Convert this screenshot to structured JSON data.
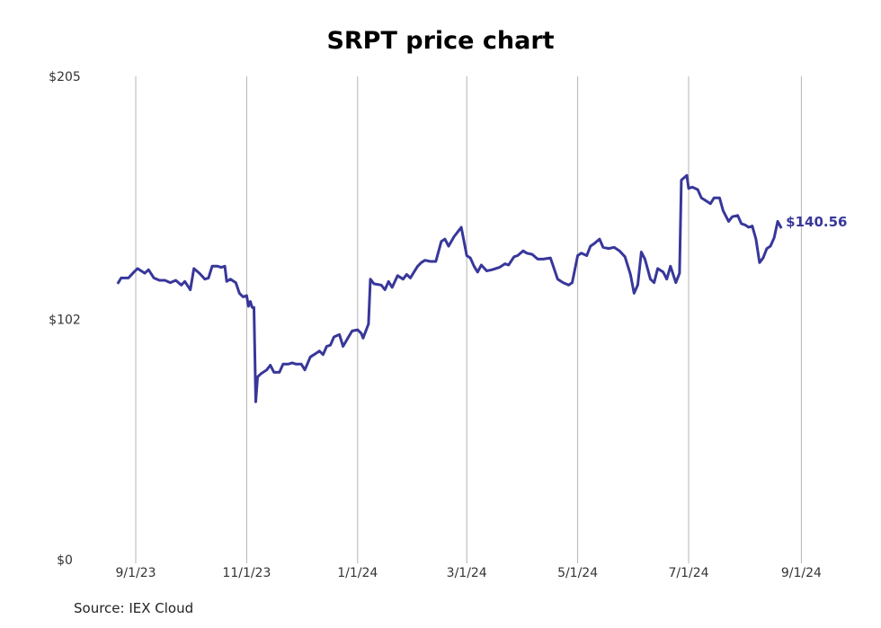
{
  "chart_data": {
    "type": "line",
    "title": "SRPT price chart",
    "source": "Source: IEX Cloud",
    "line_color": "#38379a",
    "grid_color": "#b4b4b4",
    "grid": "vertical",
    "xlabel": "",
    "ylabel": "",
    "x_ticks": [
      "9/1/23",
      "11/1/23",
      "1/1/24",
      "3/1/24",
      "5/1/24",
      "7/1/24",
      "9/1/24"
    ],
    "y_ticks": [
      {
        "value": 0,
        "label": "$0"
      },
      {
        "value": 102,
        "label": "$102"
      },
      {
        "value": 205,
        "label": "$205"
      }
    ],
    "ylim": [
      0,
      205
    ],
    "last_value_label": "$140.56",
    "series": [
      {
        "values": [
          [
            "2023-08-22",
            117
          ],
          [
            "2023-08-24",
            119.5
          ],
          [
            "2023-08-28",
            119.5
          ],
          [
            "2023-08-31",
            122
          ],
          [
            "2023-09-02",
            123.5
          ],
          [
            "2023-09-06",
            121.5
          ],
          [
            "2023-09-08",
            123
          ],
          [
            "2023-09-11",
            119.5
          ],
          [
            "2023-09-14",
            118.5
          ],
          [
            "2023-09-17",
            118.5
          ],
          [
            "2023-09-20",
            117.5
          ],
          [
            "2023-09-23",
            118.5
          ],
          [
            "2023-09-26",
            116.5
          ],
          [
            "2023-09-28",
            118
          ],
          [
            "2023-10-01",
            114.5
          ],
          [
            "2023-10-03",
            123.5
          ],
          [
            "2023-10-06",
            121.5
          ],
          [
            "2023-10-09",
            119
          ],
          [
            "2023-10-11",
            119.5
          ],
          [
            "2023-10-13",
            124.5
          ],
          [
            "2023-10-16",
            124.5
          ],
          [
            "2023-10-18",
            124
          ],
          [
            "2023-10-20",
            124.5
          ],
          [
            "2023-10-21",
            118
          ],
          [
            "2023-10-23",
            119
          ],
          [
            "2023-10-26",
            117.5
          ],
          [
            "2023-10-28",
            113
          ],
          [
            "2023-10-30",
            111.5
          ],
          [
            "2023-11-01",
            112
          ],
          [
            "2023-11-02",
            107.5
          ],
          [
            "2023-11-03",
            109.5
          ],
          [
            "2023-11-04",
            107
          ],
          [
            "2023-11-05",
            107
          ],
          [
            "2023-11-06",
            67
          ],
          [
            "2023-11-07",
            77.5
          ],
          [
            "2023-11-09",
            79
          ],
          [
            "2023-11-12",
            80.5
          ],
          [
            "2023-11-14",
            82.5
          ],
          [
            "2023-11-16",
            79.5
          ],
          [
            "2023-11-19",
            79.5
          ],
          [
            "2023-11-21",
            83
          ],
          [
            "2023-11-24",
            83
          ],
          [
            "2023-11-26",
            83.5
          ],
          [
            "2023-11-28",
            83
          ],
          [
            "2023-12-01",
            83
          ],
          [
            "2023-12-03",
            80.5
          ],
          [
            "2023-12-06",
            86
          ],
          [
            "2023-12-08",
            87
          ],
          [
            "2023-12-11",
            88.5
          ],
          [
            "2023-12-13",
            87
          ],
          [
            "2023-12-15",
            90.5
          ],
          [
            "2023-12-17",
            91
          ],
          [
            "2023-12-19",
            94.5
          ],
          [
            "2023-12-22",
            95.5
          ],
          [
            "2023-12-24",
            90.5
          ],
          [
            "2023-12-27",
            94.5
          ],
          [
            "2023-12-29",
            97
          ],
          [
            "2024-01-01",
            97.5
          ],
          [
            "2024-01-03",
            96
          ],
          [
            "2024-01-04",
            94
          ],
          [
            "2024-01-07",
            100
          ],
          [
            "2024-01-08",
            119
          ],
          [
            "2024-01-10",
            117
          ],
          [
            "2024-01-14",
            116.5
          ],
          [
            "2024-01-16",
            114.5
          ],
          [
            "2024-01-18",
            118
          ],
          [
            "2024-01-20",
            115.5
          ],
          [
            "2024-01-23",
            120.5
          ],
          [
            "2024-01-26",
            119
          ],
          [
            "2024-01-28",
            121
          ],
          [
            "2024-01-30",
            119.5
          ],
          [
            "2024-02-01",
            122
          ],
          [
            "2024-02-03",
            124.5
          ],
          [
            "2024-02-05",
            126
          ],
          [
            "2024-02-07",
            127
          ],
          [
            "2024-02-10",
            126.5
          ],
          [
            "2024-02-13",
            126.5
          ],
          [
            "2024-02-16",
            135
          ],
          [
            "2024-02-18",
            136
          ],
          [
            "2024-02-20",
            133
          ],
          [
            "2024-02-23",
            137
          ],
          [
            "2024-02-25",
            139
          ],
          [
            "2024-02-27",
            141
          ],
          [
            "2024-03-01",
            129
          ],
          [
            "2024-03-03",
            128
          ],
          [
            "2024-03-05",
            124.5
          ],
          [
            "2024-03-07",
            122
          ],
          [
            "2024-03-09",
            125
          ],
          [
            "2024-03-12",
            122.5
          ],
          [
            "2024-03-15",
            123
          ],
          [
            "2024-03-19",
            124
          ],
          [
            "2024-03-22",
            125.5
          ],
          [
            "2024-03-24",
            125
          ],
          [
            "2024-03-27",
            128.5
          ],
          [
            "2024-03-29",
            129
          ],
          [
            "2024-04-01",
            131
          ],
          [
            "2024-04-03",
            130
          ],
          [
            "2024-04-06",
            129.5
          ],
          [
            "2024-04-09",
            127.5
          ],
          [
            "2024-04-12",
            127.5
          ],
          [
            "2024-04-16",
            128
          ],
          [
            "2024-04-20",
            119
          ],
          [
            "2024-04-23",
            117.5
          ],
          [
            "2024-04-26",
            116.5
          ],
          [
            "2024-04-28",
            117.5
          ],
          [
            "2024-05-01",
            129
          ],
          [
            "2024-05-03",
            130
          ],
          [
            "2024-05-06",
            129
          ],
          [
            "2024-05-08",
            133
          ],
          [
            "2024-05-10",
            134
          ],
          [
            "2024-05-13",
            136
          ],
          [
            "2024-05-15",
            132.5
          ],
          [
            "2024-05-18",
            132
          ],
          [
            "2024-05-21",
            132.5
          ],
          [
            "2024-05-24",
            131
          ],
          [
            "2024-05-27",
            128.5
          ],
          [
            "2024-05-30",
            121
          ],
          [
            "2024-06-01",
            113
          ],
          [
            "2024-06-03",
            116.5
          ],
          [
            "2024-06-05",
            130.5
          ],
          [
            "2024-06-07",
            127.5
          ],
          [
            "2024-06-10",
            119
          ],
          [
            "2024-06-12",
            117.5
          ],
          [
            "2024-06-14",
            123.5
          ],
          [
            "2024-06-17",
            122
          ],
          [
            "2024-06-19",
            119
          ],
          [
            "2024-06-21",
            124.5
          ],
          [
            "2024-06-24",
            117.5
          ],
          [
            "2024-06-26",
            121.5
          ],
          [
            "2024-06-27",
            161
          ],
          [
            "2024-06-30",
            163
          ],
          [
            "2024-07-01",
            157.5
          ],
          [
            "2024-07-03",
            158
          ],
          [
            "2024-07-06",
            157
          ],
          [
            "2024-07-08",
            153.5
          ],
          [
            "2024-07-10",
            152.5
          ],
          [
            "2024-07-13",
            151
          ],
          [
            "2024-07-15",
            153.5
          ],
          [
            "2024-07-18",
            153.5
          ],
          [
            "2024-07-20",
            148
          ],
          [
            "2024-07-23",
            143.5
          ],
          [
            "2024-07-25",
            145.5
          ],
          [
            "2024-07-28",
            146
          ],
          [
            "2024-07-30",
            142.5
          ],
          [
            "2024-08-01",
            142
          ],
          [
            "2024-08-03",
            141
          ],
          [
            "2024-08-05",
            141.5
          ],
          [
            "2024-08-07",
            136
          ],
          [
            "2024-08-09",
            126
          ],
          [
            "2024-08-11",
            128
          ],
          [
            "2024-08-13",
            132
          ],
          [
            "2024-08-15",
            133
          ],
          [
            "2024-08-17",
            136.5
          ],
          [
            "2024-08-19",
            143.5
          ],
          [
            "2024-08-21",
            140.56
          ]
        ]
      }
    ]
  }
}
